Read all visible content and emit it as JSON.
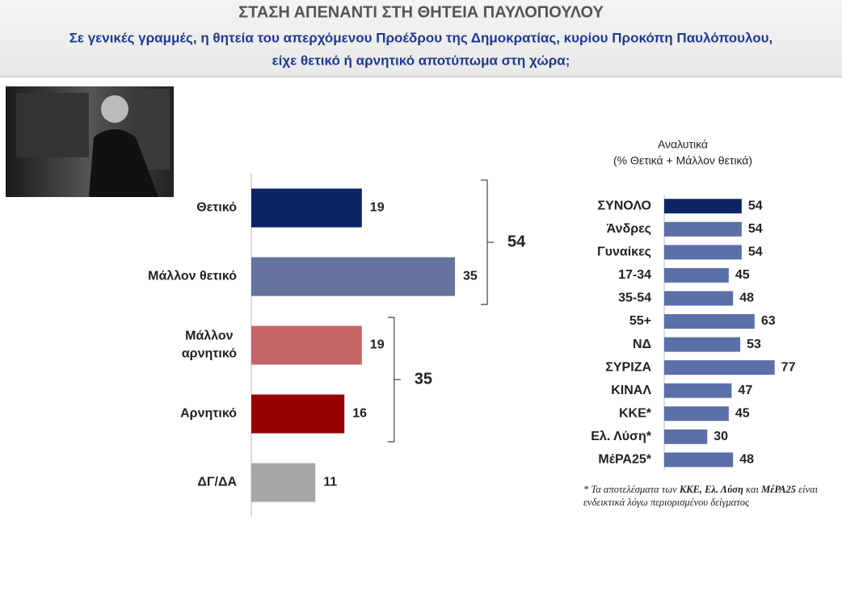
{
  "header": {
    "title": "ΣΤΑΣΗ ΑΠΕΝΑΝΤΙ ΣΤΗ ΘΗΤΕΙΑ ΠΑΥΛΟΠΟΥΛΟΥ",
    "subtitle": [
      "Σε γενικές γραμμές, η θητεία του απερχόμενου Προέδρου της Δημοκρατίας, κυρίου Προκόπη Παυλόπουλου,",
      "είχε θετικό ή αρνητικό αποτύπωμα στη χώρα;"
    ]
  },
  "chart_data": [
    {
      "type": "bar",
      "orientation": "horizontal",
      "categories": [
        "Θετικό",
        "Μάλλον θετικό",
        "Μάλλον αρνητικό",
        "Αρνητικό",
        "ΔΓ/ΔΑ"
      ],
      "values": [
        19,
        35,
        19,
        16,
        11
      ],
      "colors": [
        "#0d2464",
        "#64749f",
        "#c4656a",
        "#990000",
        "#a6a6a6"
      ],
      "xlim": [
        0,
        40
      ],
      "groups": [
        {
          "members": [
            "Θετικό",
            "Μάλλον θετικό"
          ],
          "value": 54
        },
        {
          "members": [
            "Μάλλον αρνητικό",
            "Αρνητικό"
          ],
          "value": 35
        }
      ]
    },
    {
      "type": "bar",
      "orientation": "horizontal",
      "title": "Αναλυτικά",
      "subtitle": "(% Θετικά + Μάλλον θετικά)",
      "categories": [
        "ΣΥΝΟΛΟ",
        "Άνδρες",
        "Γυναίκες",
        "17-34",
        "35-54",
        "55+",
        "ΝΔ",
        "ΣΥΡΙΖΑ",
        "ΚΙΝΑΛ",
        "ΚΚΕ*",
        "Ελ. Λύση*",
        "ΜέΡΑ25*"
      ],
      "values": [
        54,
        54,
        54,
        45,
        48,
        63,
        53,
        77,
        47,
        45,
        30,
        48
      ],
      "colors": [
        "#0d2464",
        "#5b70a8",
        "#5b70a8",
        "#5b70a8",
        "#5b70a8",
        "#5b70a8",
        "#5b70a8",
        "#5b70a8",
        "#5b70a8",
        "#5b70a8",
        "#5b70a8",
        "#5b70a8"
      ],
      "xlim": [
        0,
        80
      ],
      "note": [
        {
          "text": "* Τα αποτελέσματα των ",
          "bold": false
        },
        {
          "text": "ΚΚΕ, Ελ. Λύση",
          "bold": true
        },
        {
          "text": " και ",
          "bold": false
        },
        {
          "text": "ΜέΡΑ25",
          "bold": true
        },
        {
          "text": " είναι ενδεικτικά λόγω περιορισμένου δείγματος",
          "bold": false
        }
      ]
    }
  ]
}
